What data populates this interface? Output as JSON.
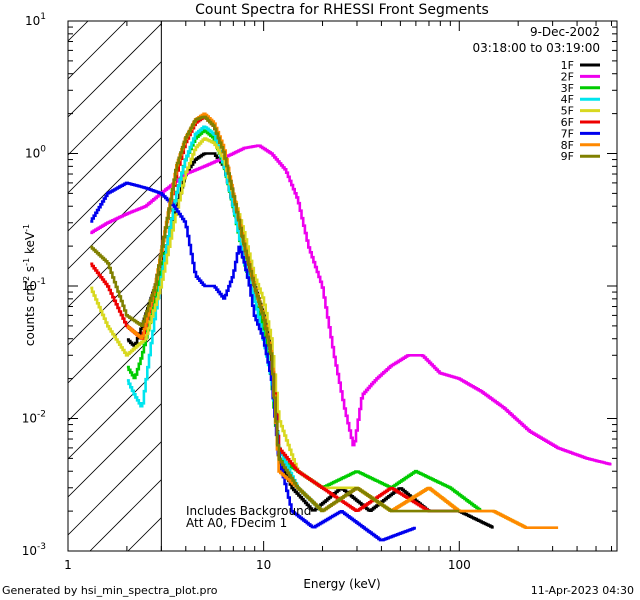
{
  "chart_data": {
    "type": "line",
    "title": "Count Spectra for RHESSI Front Segments",
    "date": "9-Dec-2002",
    "time_range": "03:18:00 to 03:19:00",
    "xlabel": "Energy (keV)",
    "ylabel_parts": [
      "counts cm",
      "-2",
      " s",
      "-1",
      " keV",
      "-1"
    ],
    "xscale": "log",
    "yscale": "log",
    "xlim": [
      1,
      640
    ],
    "ylim": [
      0.001,
      10
    ],
    "x_tick_labels": [
      {
        "value": 1,
        "label": "1"
      },
      {
        "value": 10,
        "label": "10"
      },
      {
        "value": 100,
        "label": "100"
      }
    ],
    "y_tick_labels": [
      {
        "exp": -3,
        "label": "10",
        "sup": "-3"
      },
      {
        "exp": -2,
        "label": "10",
        "sup": "-2"
      },
      {
        "exp": -1,
        "label": "10",
        "sup": "-1"
      },
      {
        "exp": 0,
        "label": "10",
        "sup": "0"
      },
      {
        "exp": 1,
        "label": "10",
        "sup": "1"
      }
    ],
    "excluded_region": {
      "x_min": 1,
      "x_max": 3,
      "style": "hatched"
    },
    "annotation_lines": [
      "Includes Background",
      "Att A0, FDecim 1"
    ],
    "legend_position": "top-right",
    "series": [
      {
        "name": "1F",
        "color": "#000000",
        "points": [
          [
            2.0,
            0.04
          ],
          [
            2.2,
            0.035
          ],
          [
            2.4,
            0.05
          ],
          [
            2.8,
            0.1
          ],
          [
            3.2,
            0.2
          ],
          [
            3.6,
            0.4
          ],
          [
            4.0,
            0.7
          ],
          [
            4.5,
            0.9
          ],
          [
            5.0,
            1.0
          ],
          [
            5.6,
            1.0
          ],
          [
            6.3,
            0.8
          ],
          [
            7.0,
            0.4
          ],
          [
            8.0,
            0.2
          ],
          [
            9.0,
            0.1
          ],
          [
            10,
            0.06
          ],
          [
            11,
            0.03
          ],
          [
            12,
            0.005
          ],
          [
            14,
            0.003
          ],
          [
            18,
            0.002
          ],
          [
            25,
            0.003
          ],
          [
            35,
            0.002
          ],
          [
            50,
            0.003
          ],
          [
            70,
            0.002
          ],
          [
            100,
            0.002
          ],
          [
            150,
            0.0015
          ]
        ]
      },
      {
        "name": "2F",
        "color": "#ee00ee",
        "points": [
          [
            1.3,
            0.25
          ],
          [
            1.6,
            0.3
          ],
          [
            2.0,
            0.35
          ],
          [
            2.5,
            0.4
          ],
          [
            3.0,
            0.5
          ],
          [
            4.0,
            0.7
          ],
          [
            5.0,
            0.8
          ],
          [
            6.0,
            0.9
          ],
          [
            7.0,
            1.0
          ],
          [
            8.0,
            1.1
          ],
          [
            9.5,
            1.15
          ],
          [
            11,
            1.0
          ],
          [
            13,
            0.75
          ],
          [
            15,
            0.45
          ],
          [
            17,
            0.2
          ],
          [
            20,
            0.1
          ],
          [
            23,
            0.03
          ],
          [
            26,
            0.012
          ],
          [
            29,
            0.006
          ],
          [
            32,
            0.015
          ],
          [
            38,
            0.02
          ],
          [
            45,
            0.025
          ],
          [
            55,
            0.03
          ],
          [
            65,
            0.03
          ],
          [
            80,
            0.022
          ],
          [
            100,
            0.02
          ],
          [
            130,
            0.016
          ],
          [
            170,
            0.012
          ],
          [
            230,
            0.008
          ],
          [
            320,
            0.006
          ],
          [
            450,
            0.005
          ],
          [
            600,
            0.0045
          ]
        ]
      },
      {
        "name": "3F",
        "color": "#00cc00",
        "points": [
          [
            2.0,
            0.025
          ],
          [
            2.2,
            0.02
          ],
          [
            2.4,
            0.03
          ],
          [
            2.8,
            0.08
          ],
          [
            3.2,
            0.2
          ],
          [
            3.6,
            0.5
          ],
          [
            4.0,
            0.9
          ],
          [
            4.5,
            1.3
          ],
          [
            5.0,
            1.5
          ],
          [
            5.6,
            1.3
          ],
          [
            6.3,
            0.8
          ],
          [
            7.0,
            0.4
          ],
          [
            8.0,
            0.15
          ],
          [
            9.0,
            0.08
          ],
          [
            10,
            0.05
          ],
          [
            11,
            0.02
          ],
          [
            12,
            0.005
          ],
          [
            15,
            0.004
          ],
          [
            20,
            0.003
          ],
          [
            30,
            0.004
          ],
          [
            45,
            0.003
          ],
          [
            60,
            0.004
          ],
          [
            90,
            0.003
          ],
          [
            130,
            0.002
          ]
        ]
      },
      {
        "name": "4F",
        "color": "#00e5ee",
        "points": [
          [
            2.0,
            0.02
          ],
          [
            2.2,
            0.015
          ],
          [
            2.4,
            0.012
          ],
          [
            2.8,
            0.06
          ],
          [
            3.2,
            0.2
          ],
          [
            3.6,
            0.5
          ],
          [
            4.0,
            0.9
          ],
          [
            4.5,
            1.4
          ],
          [
            5.0,
            1.6
          ],
          [
            5.6,
            1.4
          ],
          [
            6.3,
            0.8
          ],
          [
            7.0,
            0.4
          ],
          [
            8.0,
            0.15
          ],
          [
            9.0,
            0.08
          ],
          [
            10,
            0.04
          ],
          [
            11,
            0.02
          ],
          [
            12,
            0.006
          ],
          [
            15,
            0.003
          ],
          [
            20,
            0.002
          ]
        ]
      },
      {
        "name": "5F",
        "color": "#d8d820",
        "points": [
          [
            1.3,
            0.1
          ],
          [
            1.6,
            0.05
          ],
          [
            2.0,
            0.03
          ],
          [
            2.5,
            0.04
          ],
          [
            3.0,
            0.1
          ],
          [
            3.5,
            0.3
          ],
          [
            4.0,
            0.7
          ],
          [
            4.5,
            1.1
          ],
          [
            5.0,
            1.3
          ],
          [
            5.6,
            1.2
          ],
          [
            6.3,
            0.9
          ],
          [
            7.0,
            0.5
          ],
          [
            8.0,
            0.25
          ],
          [
            9.0,
            0.12
          ],
          [
            10,
            0.08
          ],
          [
            11,
            0.04
          ],
          [
            12,
            0.01
          ],
          [
            15,
            0.004
          ],
          [
            20,
            0.003
          ],
          [
            30,
            0.003
          ],
          [
            45,
            0.002
          ],
          [
            70,
            0.003
          ],
          [
            100,
            0.002
          ],
          [
            150,
            0.002
          ],
          [
            220,
            0.0015
          ]
        ]
      },
      {
        "name": "6F",
        "color": "#ee0000",
        "points": [
          [
            1.3,
            0.15
          ],
          [
            1.6,
            0.1
          ],
          [
            2.0,
            0.05
          ],
          [
            2.4,
            0.04
          ],
          [
            2.8,
            0.1
          ],
          [
            3.2,
            0.3
          ],
          [
            3.6,
            0.7
          ],
          [
            4.0,
            1.2
          ],
          [
            4.5,
            1.7
          ],
          [
            5.0,
            1.9
          ],
          [
            5.6,
            1.6
          ],
          [
            6.3,
            1.0
          ],
          [
            7.0,
            0.5
          ],
          [
            8.0,
            0.2
          ],
          [
            9.0,
            0.1
          ],
          [
            10,
            0.06
          ],
          [
            11,
            0.03
          ],
          [
            12,
            0.006
          ],
          [
            15,
            0.004
          ],
          [
            20,
            0.003
          ],
          [
            30,
            0.002
          ],
          [
            45,
            0.003
          ],
          [
            70,
            0.002
          ],
          [
            100,
            0.002
          ]
        ]
      },
      {
        "name": "7F",
        "color": "#0000ee",
        "points": [
          [
            1.3,
            0.3
          ],
          [
            1.6,
            0.5
          ],
          [
            2.0,
            0.6
          ],
          [
            2.5,
            0.55
          ],
          [
            3.0,
            0.5
          ],
          [
            3.5,
            0.4
          ],
          [
            4.0,
            0.3
          ],
          [
            4.5,
            0.12
          ],
          [
            5.0,
            0.1
          ],
          [
            5.6,
            0.1
          ],
          [
            6.3,
            0.08
          ],
          [
            7.0,
            0.12
          ],
          [
            7.5,
            0.2
          ],
          [
            8.0,
            0.15
          ],
          [
            8.5,
            0.1
          ],
          [
            9.0,
            0.06
          ],
          [
            10,
            0.04
          ],
          [
            11,
            0.02
          ],
          [
            12,
            0.005
          ],
          [
            14,
            0.002
          ],
          [
            18,
            0.0015
          ],
          [
            25,
            0.002
          ],
          [
            40,
            0.0012
          ],
          [
            60,
            0.0015
          ]
        ]
      },
      {
        "name": "8F",
        "color": "#ff8800",
        "points": [
          [
            2.0,
            0.05
          ],
          [
            2.4,
            0.04
          ],
          [
            2.8,
            0.1
          ],
          [
            3.2,
            0.3
          ],
          [
            3.6,
            0.8
          ],
          [
            4.0,
            1.3
          ],
          [
            4.5,
            1.8
          ],
          [
            5.0,
            2.0
          ],
          [
            5.6,
            1.7
          ],
          [
            6.3,
            1.1
          ],
          [
            7.0,
            0.5
          ],
          [
            8.0,
            0.2
          ],
          [
            9.0,
            0.1
          ],
          [
            10,
            0.06
          ],
          [
            11,
            0.03
          ],
          [
            12,
            0.004
          ],
          [
            15,
            0.003
          ],
          [
            20,
            0.002
          ],
          [
            30,
            0.003
          ],
          [
            45,
            0.002
          ],
          [
            70,
            0.003
          ],
          [
            100,
            0.002
          ],
          [
            150,
            0.002
          ],
          [
            220,
            0.0015
          ],
          [
            320,
            0.0015
          ]
        ]
      },
      {
        "name": "9F",
        "color": "#808000",
        "points": [
          [
            1.3,
            0.2
          ],
          [
            1.6,
            0.15
          ],
          [
            2.0,
            0.06
          ],
          [
            2.4,
            0.05
          ],
          [
            2.8,
            0.1
          ],
          [
            3.2,
            0.3
          ],
          [
            3.6,
            0.8
          ],
          [
            4.0,
            1.3
          ],
          [
            4.5,
            1.8
          ],
          [
            5.0,
            1.9
          ],
          [
            5.6,
            1.6
          ],
          [
            6.3,
            1.0
          ],
          [
            7.0,
            0.5
          ],
          [
            8.0,
            0.2
          ],
          [
            9.0,
            0.1
          ],
          [
            10,
            0.06
          ],
          [
            11,
            0.03
          ],
          [
            12,
            0.005
          ],
          [
            15,
            0.003
          ],
          [
            20,
            0.002
          ],
          [
            30,
            0.003
          ],
          [
            45,
            0.002
          ],
          [
            70,
            0.002
          ],
          [
            100,
            0.002
          ]
        ]
      }
    ]
  },
  "footer": {
    "left": "Generated by hsi_min_spectra_plot.pro",
    "right": "11-Apr-2023 04:30"
  }
}
